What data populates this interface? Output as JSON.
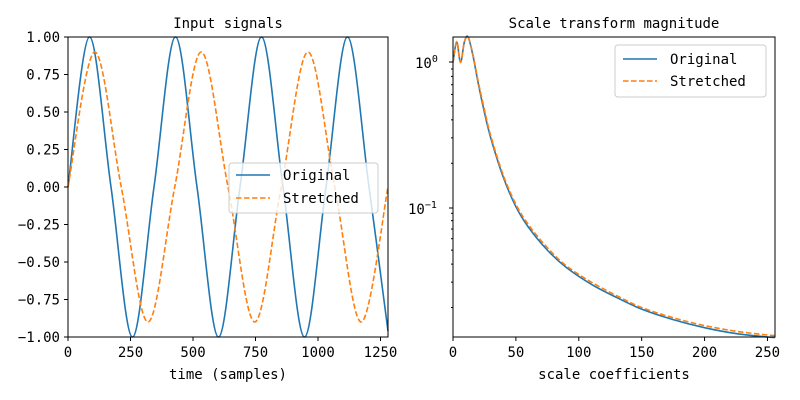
{
  "chart_data": [
    {
      "type": "line",
      "title": "Input signals",
      "xlabel": "time (samples)",
      "ylabel": "",
      "xlim": [
        0,
        1280
      ],
      "ylim": [
        -1.0,
        1.0
      ],
      "grid": false,
      "legend_position": "center-right",
      "xticks": [
        "0",
        "250",
        "500",
        "750",
        "1000",
        "1250"
      ],
      "yticks": [
        "1.00",
        "0.75",
        "0.50",
        "0.25",
        "0.00",
        "−0.25",
        "−0.50",
        "−0.75",
        "−1.00"
      ],
      "series": [
        {
          "name": "Original",
          "color": "#1f77b4",
          "style": "solid",
          "x": [
            0,
            86,
            172,
            258,
            344,
            430,
            516,
            602,
            688,
            774,
            860,
            946,
            1032,
            1118,
            1204,
            1280
          ],
          "y": [
            0.0,
            1.0,
            0.0,
            -1.0,
            0.0,
            1.0,
            0.0,
            -1.0,
            0.0,
            1.0,
            0.0,
            -1.0,
            0.0,
            1.0,
            0.0,
            -0.96
          ]
        },
        {
          "name": "Stretched",
          "color": "#ff7f0e",
          "style": "dashed",
          "x": [
            0,
            107,
            213,
            320,
            427,
            533,
            640,
            747,
            853,
            960,
            1067,
            1173,
            1280
          ],
          "y": [
            0.0,
            0.9,
            0.0,
            -0.9,
            0.0,
            0.9,
            0.0,
            -0.9,
            0.0,
            0.9,
            0.0,
            -0.9,
            0.0
          ]
        }
      ]
    },
    {
      "type": "line",
      "title": "Scale transform magnitude",
      "xlabel": "scale coefficients",
      "ylabel": "",
      "xlim": [
        0,
        256
      ],
      "ylim": [
        0.0125,
        1.5
      ],
      "yscale": "log",
      "grid": false,
      "legend_position": "top-right",
      "xticks": [
        "0",
        "50",
        "100",
        "150",
        "200",
        "250"
      ],
      "series": [
        {
          "name": "Original",
          "color": "#1f77b4",
          "style": "solid",
          "x": [
            0,
            3,
            6,
            9,
            12,
            16,
            20,
            25,
            30,
            40,
            50,
            60,
            75,
            90,
            110,
            130,
            150,
            175,
            200,
            225,
            250,
            256
          ],
          "y": [
            1.0,
            1.38,
            1.0,
            1.38,
            1.5,
            1.1,
            0.72,
            0.45,
            0.3,
            0.16,
            0.1,
            0.072,
            0.05,
            0.038,
            0.029,
            0.0235,
            0.0195,
            0.0165,
            0.0145,
            0.0132,
            0.0125,
            0.0124
          ]
        },
        {
          "name": "Stretched",
          "color": "#ff7f0e",
          "style": "dashed",
          "x": [
            0,
            3,
            6,
            9,
            12,
            16,
            20,
            25,
            30,
            40,
            50,
            60,
            75,
            90,
            110,
            130,
            150,
            175,
            200,
            225,
            250,
            256
          ],
          "y": [
            1.0,
            1.4,
            1.0,
            1.38,
            1.5,
            1.12,
            0.74,
            0.47,
            0.31,
            0.165,
            0.104,
            0.075,
            0.052,
            0.039,
            0.03,
            0.0242,
            0.02,
            0.017,
            0.015,
            0.0137,
            0.0129,
            0.0128
          ]
        }
      ]
    }
  ],
  "left_panel": {
    "title": "Input signals",
    "xlabel": "time (samples)",
    "legend": [
      "Original",
      "Stretched"
    ]
  },
  "right_panel": {
    "title": "Scale transform magnitude",
    "xlabel": "scale coefficients",
    "ytick_major_base": "10",
    "ytick_major_0_exp": "0",
    "ytick_major_1_exp": "−1",
    "legend": [
      "Original",
      "Stretched"
    ]
  }
}
